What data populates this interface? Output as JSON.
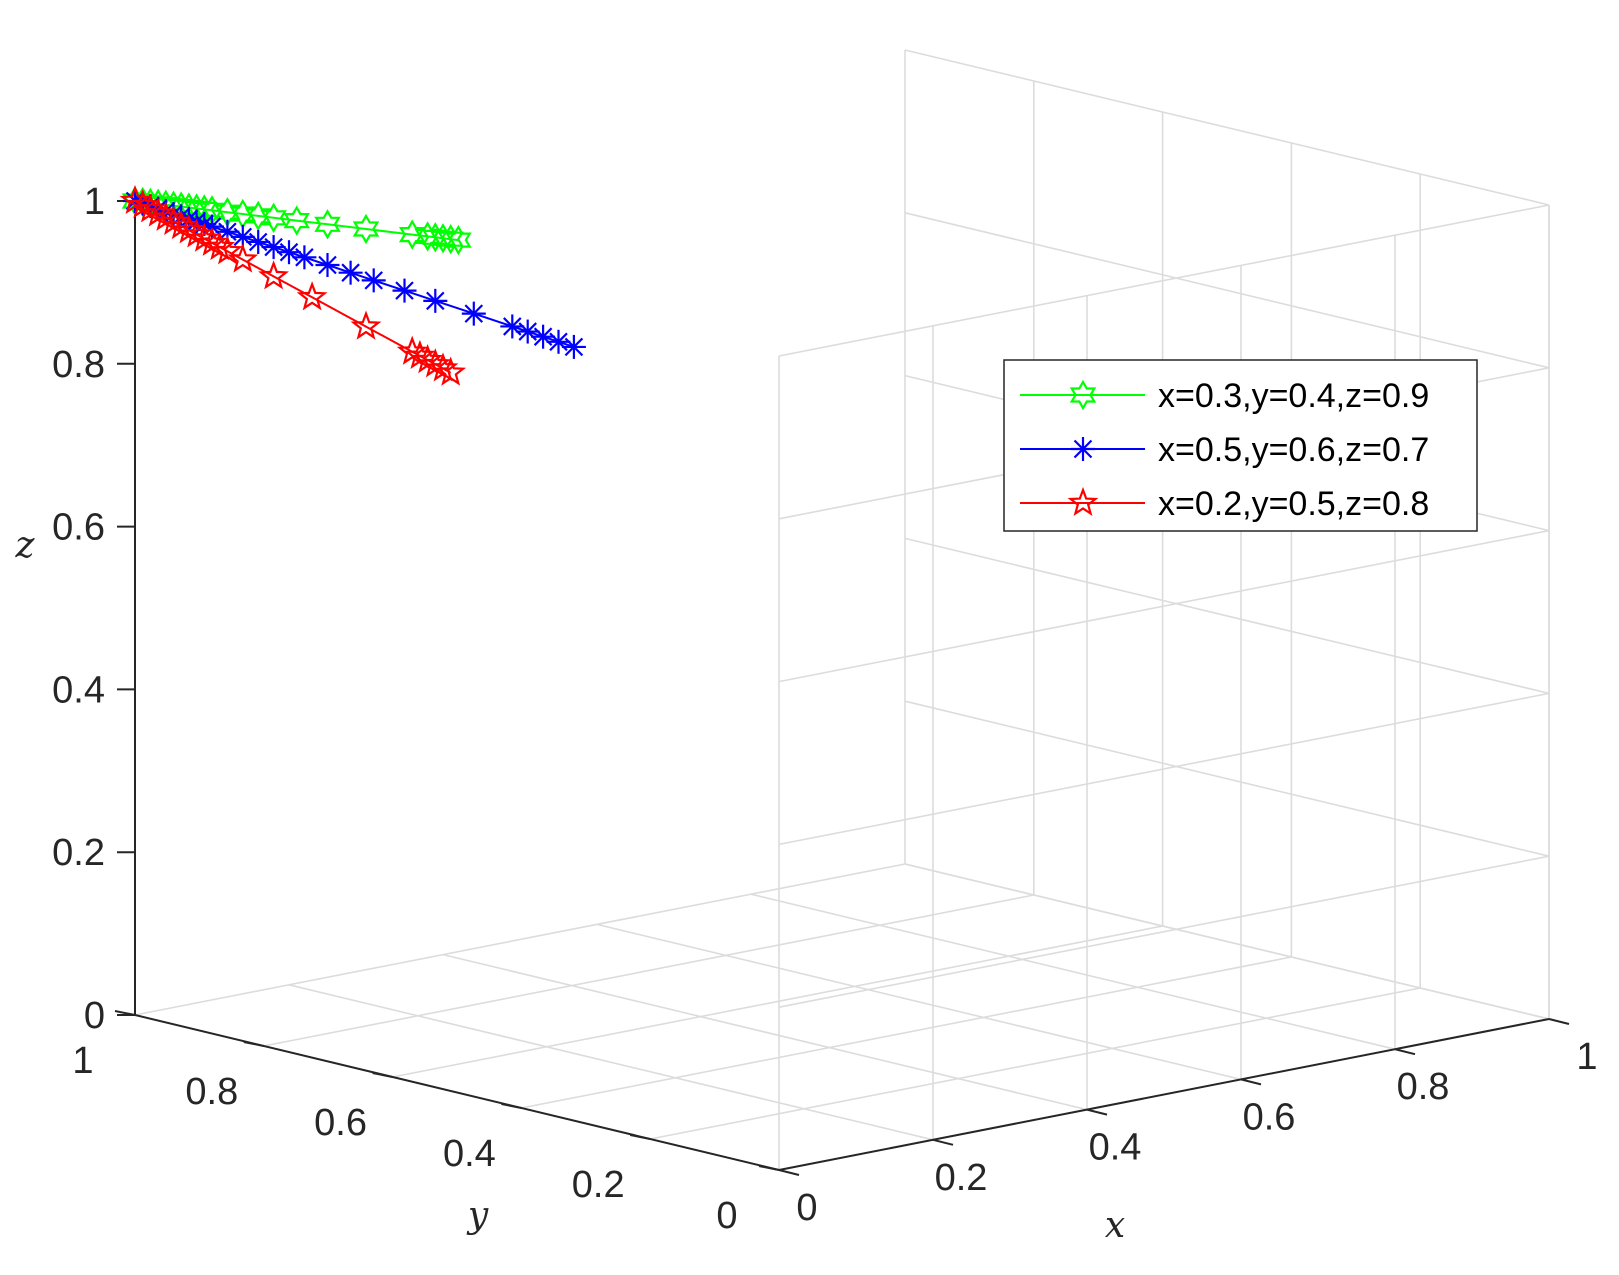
{
  "chart_data": {
    "type": "line3d",
    "xlabel": "x",
    "ylabel": "y",
    "zlabel": "z",
    "xlim": [
      0,
      1
    ],
    "ylim": [
      0,
      1
    ],
    "zlim": [
      0,
      1
    ],
    "x_ticks": [
      "0",
      "0.2",
      "0.4",
      "0.6",
      "0.8",
      "1"
    ],
    "y_ticks": [
      "0",
      "0.2",
      "0.4",
      "0.6",
      "0.8",
      "1"
    ],
    "z_ticks": [
      "0",
      "0.2",
      "0.4",
      "0.6",
      "0.8",
      "1"
    ],
    "grid": true,
    "legend_position": "right",
    "series": [
      {
        "name": "x=0.3,y=0.4,z=0.9",
        "color": "#00ff00",
        "marker": "hexagram",
        "x": [
          0.0,
          0.01,
          0.02,
          0.03,
          0.04,
          0.05,
          0.06,
          0.07,
          0.08,
          0.09,
          0.1,
          0.12,
          0.14,
          0.16,
          0.18,
          0.21,
          0.25,
          0.3,
          0.36,
          0.38,
          0.39,
          0.4,
          0.41,
          0.42
        ],
        "y": [
          1.0,
          1.0,
          1.0,
          1.0,
          1.0,
          1.0,
          1.0,
          1.0,
          1.0,
          1.0,
          1.0,
          1.0,
          1.0,
          1.0,
          1.0,
          1.0,
          1.0,
          1.0,
          1.0,
          1.0,
          1.0,
          1.0,
          1.0,
          1.0
        ],
        "z": [
          1.0,
          0.997,
          0.994,
          0.991,
          0.988,
          0.985,
          0.982,
          0.979,
          0.976,
          0.973,
          0.97,
          0.964,
          0.958,
          0.952,
          0.946,
          0.937,
          0.925,
          0.91,
          0.892,
          0.886,
          0.883,
          0.88,
          0.877,
          0.874
        ]
      },
      {
        "name": "x=0.5,y=0.6,z=0.7",
        "color": "#0000ff",
        "marker": "asterisk",
        "x": [
          0.0,
          0.01,
          0.02,
          0.03,
          0.04,
          0.05,
          0.06,
          0.07,
          0.08,
          0.09,
          0.1,
          0.12,
          0.14,
          0.16,
          0.18,
          0.2,
          0.22,
          0.25,
          0.28,
          0.31,
          0.35,
          0.39,
          0.44,
          0.49,
          0.51,
          0.53,
          0.55,
          0.57
        ],
        "y": [
          1.0,
          1.0,
          1.0,
          1.0,
          1.0,
          1.0,
          1.0,
          1.0,
          1.0,
          1.0,
          1.0,
          1.0,
          1.0,
          1.0,
          1.0,
          1.0,
          1.0,
          1.0,
          1.0,
          1.0,
          1.0,
          1.0,
          1.0,
          1.0,
          1.0,
          1.0,
          1.0,
          1.0
        ],
        "z": [
          1.0,
          0.995,
          0.99,
          0.985,
          0.98,
          0.975,
          0.97,
          0.965,
          0.96,
          0.955,
          0.95,
          0.94,
          0.93,
          0.92,
          0.91,
          0.9,
          0.89,
          0.875,
          0.86,
          0.845,
          0.825,
          0.805,
          0.78,
          0.755,
          0.745,
          0.735,
          0.725,
          0.715
        ]
      },
      {
        "name": "x=0.2,y=0.5,z=0.8",
        "color": "#ff0000",
        "marker": "pentagram",
        "x": [
          0.0,
          0.01,
          0.02,
          0.03,
          0.04,
          0.05,
          0.06,
          0.07,
          0.08,
          0.09,
          0.1,
          0.11,
          0.12,
          0.14,
          0.18,
          0.23,
          0.3,
          0.36,
          0.37,
          0.38,
          0.39,
          0.4,
          0.41
        ],
        "y": [
          1.0,
          1.0,
          1.0,
          1.0,
          1.0,
          1.0,
          1.0,
          1.0,
          1.0,
          1.0,
          1.0,
          1.0,
          1.0,
          1.0,
          1.0,
          1.0,
          1.0,
          1.0,
          1.0,
          1.0,
          1.0,
          1.0,
          1.0
        ],
        "z": [
          1.0,
          0.993,
          0.986,
          0.979,
          0.972,
          0.965,
          0.958,
          0.951,
          0.944,
          0.937,
          0.93,
          0.923,
          0.916,
          0.902,
          0.874,
          0.839,
          0.79,
          0.748,
          0.741,
          0.734,
          0.727,
          0.72,
          0.713
        ]
      }
    ]
  }
}
